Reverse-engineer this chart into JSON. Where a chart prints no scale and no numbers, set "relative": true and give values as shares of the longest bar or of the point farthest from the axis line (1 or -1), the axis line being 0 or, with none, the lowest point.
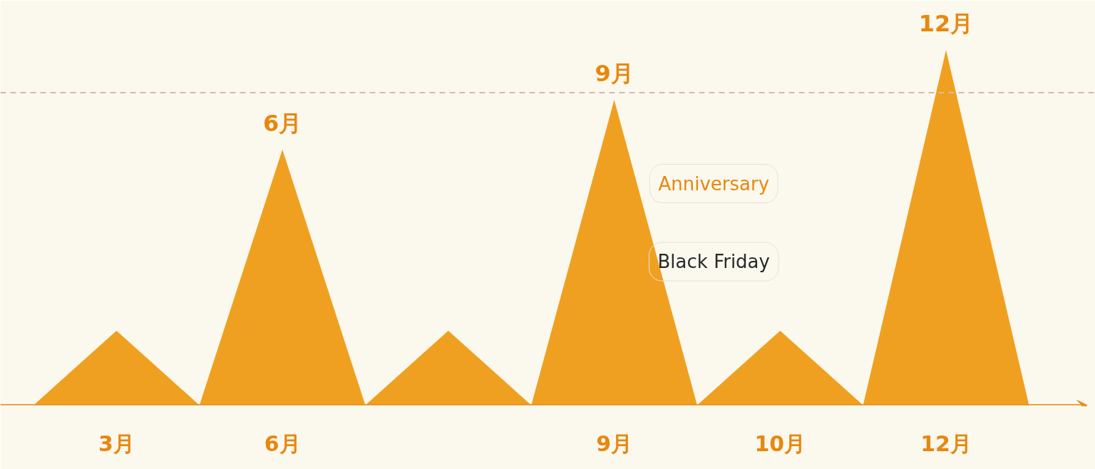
{
  "chart_data": {
    "type": "area",
    "relative": true,
    "categories": [
      null,
      "3月",
      null,
      "6月",
      null,
      null,
      null,
      "9月",
      null,
      "10月",
      null,
      "12月",
      null
    ],
    "values": [
      0,
      0.21,
      0,
      0.72,
      0,
      0.21,
      0,
      0.86,
      0,
      0.21,
      0,
      1.0,
      0
    ],
    "color": "#f0a020",
    "ref_lines": [
      {
        "axis": "y",
        "value": 0.88,
        "color": "#d8b8a8",
        "line_style": "dashed"
      }
    ],
    "annotations": [
      {
        "text": "6月",
        "x": "6月",
        "y": 0.72
      },
      {
        "text": "9月",
        "x": "9月",
        "y": 0.86
      },
      {
        "text": "12月",
        "x": "12月",
        "y": 1.0
      },
      "Anniversary",
      "Black Friday"
    ],
    "grid": false
  }
}
